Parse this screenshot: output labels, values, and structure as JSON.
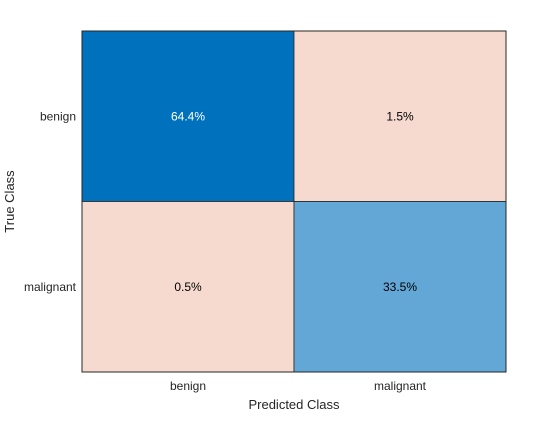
{
  "chart_data": {
    "type": "heatmap",
    "subtype": "confusion-matrix",
    "title": "",
    "xlabel": "Predicted Class",
    "ylabel": "True Class",
    "x_categories": [
      "benign",
      "malignant"
    ],
    "y_categories": [
      "benign",
      "malignant"
    ],
    "values": [
      [
        64.4,
        1.5
      ],
      [
        0.5,
        33.5
      ]
    ],
    "value_labels": [
      [
        "64.4%",
        "1.5%"
      ],
      [
        "0.5%",
        "33.5%"
      ]
    ],
    "cell_colors": [
      [
        "#0072BD",
        "#F6DAD0"
      ],
      [
        "#F6DAD0",
        "#62A7D6"
      ]
    ],
    "label_colors": [
      [
        "#ffffff",
        "#000000"
      ],
      [
        "#000000",
        "#000000"
      ]
    ],
    "grid": false,
    "legend": "none"
  }
}
